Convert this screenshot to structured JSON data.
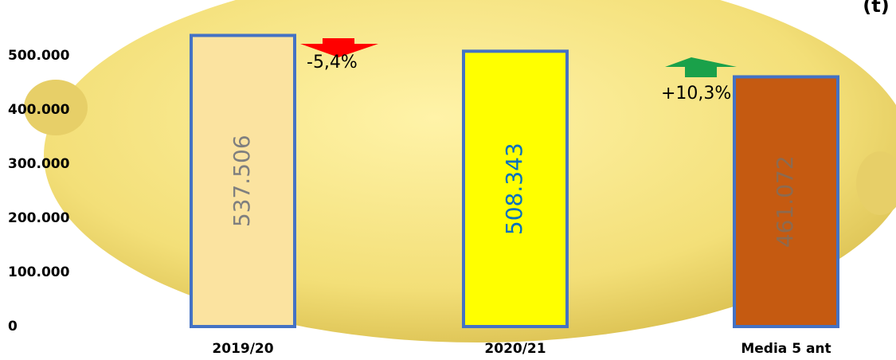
{
  "chart_data": {
    "type": "bar",
    "unit": "(t)",
    "categories": [
      "2019/20",
      "2020/21",
      "Media 5 ant"
    ],
    "values": [
      537506,
      508343,
      461072
    ],
    "value_labels": [
      "537.506",
      "508.343",
      "461.072"
    ],
    "colors": [
      "#fbe3a0",
      "#ffff00",
      "#c55a11"
    ],
    "label_colors": [
      "#7f7f7f",
      "#0070c0",
      "#8c6a50"
    ],
    "edge_color": "#4472c4",
    "ylim": [
      0,
      600000
    ],
    "yticks": [
      0,
      {
        "value": 100000,
        "label": "100.000"
      },
      {
        "value": 200000,
        "label": "200.000"
      },
      {
        "value": 300000,
        "label": "300.000"
      },
      {
        "value": 400000,
        "label": "400.000"
      },
      {
        "value": 500000,
        "label": "500.000"
      }
    ],
    "annotations": [
      "-5,4%",
      "+10,3%"
    ]
  }
}
